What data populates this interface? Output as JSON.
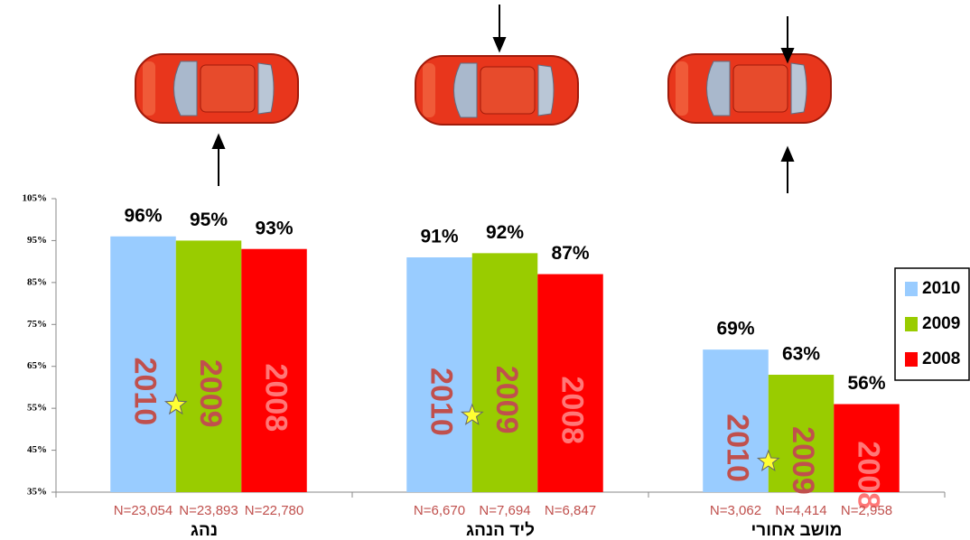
{
  "chart_data": {
    "type": "bar",
    "categories": [
      "נהג",
      "ליד הנהג",
      "מושב אחורי"
    ],
    "series": [
      {
        "name": "2010",
        "color": "#99ccff",
        "values": [
          96,
          91,
          69
        ],
        "value_labels": [
          "96%",
          "91%",
          "69%"
        ],
        "n_labels": [
          "N=23,054",
          "N=6,670",
          "N=3,062"
        ]
      },
      {
        "name": "2009",
        "color": "#99cc00",
        "values": [
          95,
          92,
          63
        ],
        "value_labels": [
          "95%",
          "92%",
          "63%"
        ],
        "n_labels": [
          "N=23,893",
          "N=7,694",
          "N=4,414"
        ]
      },
      {
        "name": "2008",
        "color": "#ff0000",
        "values": [
          93,
          87,
          56
        ],
        "value_labels": [
          "93%",
          "87%",
          "56%"
        ],
        "n_labels": [
          "N=22,780",
          "N=6,847",
          "N=2,958"
        ]
      }
    ],
    "ylim": [
      35,
      105
    ],
    "yticks": [
      {
        "value": 35,
        "label": "35%"
      },
      {
        "value": 45,
        "label": "45%"
      },
      {
        "value": 55,
        "label": "55%"
      },
      {
        "value": 65,
        "label": "65%"
      },
      {
        "value": 75,
        "label": "75%"
      },
      {
        "value": 85,
        "label": "85%"
      },
      {
        "value": 95,
        "label": "95%"
      },
      {
        "value": 105,
        "label": "105%"
      }
    ],
    "legend": "right"
  }
}
